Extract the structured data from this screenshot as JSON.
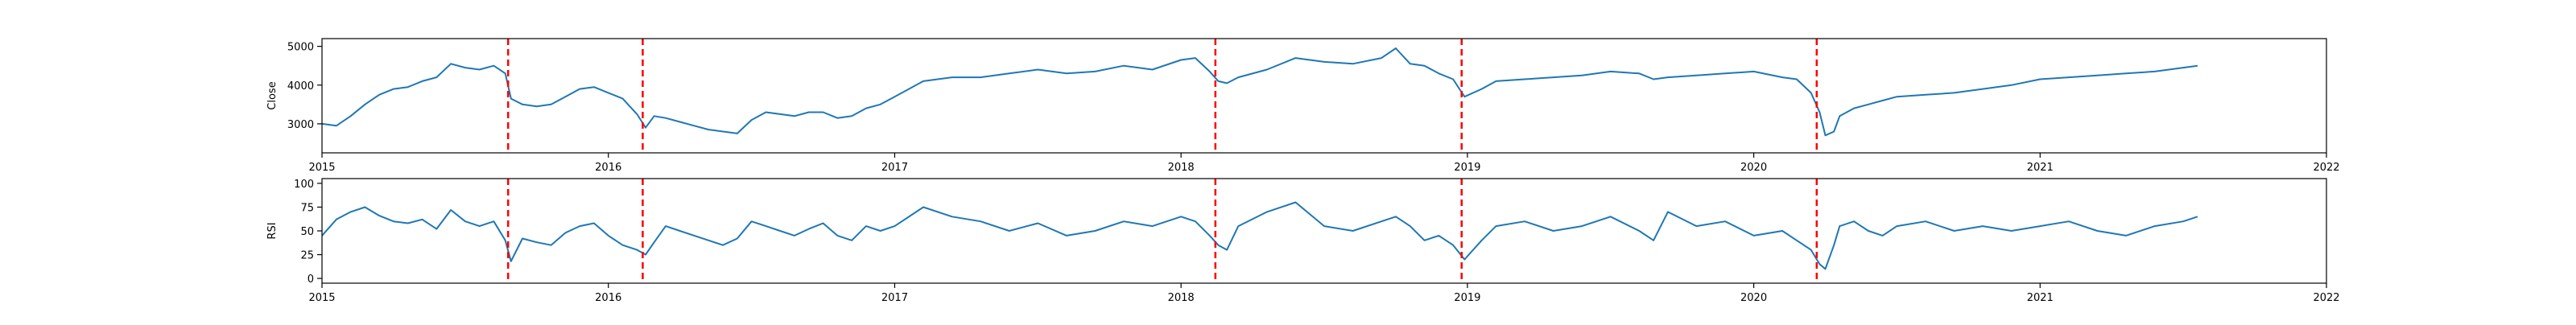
{
  "chart_data": [
    {
      "type": "line",
      "ylabel": "Close",
      "xlim": [
        2015.0,
        2022.0
      ],
      "ylim": [
        2250,
        5200
      ],
      "yticks": [
        3000,
        4000,
        5000
      ],
      "xticks": [
        "2015",
        "2016",
        "2017",
        "2018",
        "2019",
        "2020",
        "2021",
        "2022"
      ],
      "line_color": "#1f77b4",
      "series": [
        {
          "x": [
            2015.0,
            2015.05,
            2015.1,
            2015.15,
            2015.2,
            2015.25,
            2015.3,
            2015.35,
            2015.4,
            2015.45,
            2015.5,
            2015.55,
            2015.6,
            2015.64,
            2015.66,
            2015.7,
            2015.75,
            2015.8,
            2015.85,
            2015.9,
            2015.95,
            2016.0,
            2016.05,
            2016.1,
            2016.13,
            2016.16,
            2016.2,
            2016.25,
            2016.3,
            2016.35,
            2016.4,
            2016.45,
            2016.5,
            2016.55,
            2016.6,
            2016.65,
            2016.7,
            2016.75,
            2016.8,
            2016.85,
            2016.9,
            2016.95,
            2017.0,
            2017.1,
            2017.2,
            2017.3,
            2017.4,
            2017.5,
            2017.6,
            2017.7,
            2017.8,
            2017.9,
            2018.0,
            2018.05,
            2018.1,
            2018.13,
            2018.16,
            2018.2,
            2018.3,
            2018.4,
            2018.5,
            2018.6,
            2018.7,
            2018.75,
            2018.8,
            2018.85,
            2018.9,
            2018.95,
            2018.99,
            2019.05,
            2019.1,
            2019.2,
            2019.3,
            2019.4,
            2019.5,
            2019.6,
            2019.65,
            2019.7,
            2019.8,
            2019.9,
            2020.0,
            2020.1,
            2020.15,
            2020.2,
            2020.23,
            2020.25,
            2020.28,
            2020.3,
            2020.35,
            2020.4,
            2020.45,
            2020.5,
            2020.6,
            2020.7,
            2020.8,
            2020.9,
            2021.0,
            2021.1,
            2021.2,
            2021.3,
            2021.4,
            2021.5,
            2021.55
          ],
          "y": [
            3000,
            2950,
            3200,
            3500,
            3750,
            3900,
            3950,
            4100,
            4200,
            4550,
            4450,
            4400,
            4500,
            4300,
            3650,
            3500,
            3450,
            3500,
            3700,
            3900,
            3950,
            3800,
            3650,
            3250,
            2900,
            3200,
            3150,
            3050,
            2950,
            2850,
            2800,
            2750,
            3100,
            3300,
            3250,
            3200,
            3300,
            3300,
            3150,
            3200,
            3400,
            3500,
            3700,
            4100,
            4200,
            4200,
            4300,
            4400,
            4300,
            4350,
            4500,
            4400,
            4650,
            4700,
            4350,
            4100,
            4050,
            4200,
            4400,
            4700,
            4600,
            4550,
            4700,
            4950,
            4550,
            4500,
            4300,
            4150,
            3700,
            3900,
            4100,
            4150,
            4200,
            4250,
            4350,
            4300,
            4150,
            4200,
            4250,
            4300,
            4350,
            4200,
            4150,
            3800,
            3300,
            2700,
            2800,
            3200,
            3400,
            3500,
            3600,
            3700,
            3750,
            3800,
            3900,
            4000,
            4150,
            4200,
            4250,
            4300,
            4350,
            4450,
            4500
          ]
        }
      ]
    },
    {
      "type": "line",
      "ylabel": "RSI",
      "xlim": [
        2015.0,
        2022.0
      ],
      "ylim": [
        -5,
        105
      ],
      "yticks": [
        0,
        25,
        50,
        75,
        100
      ],
      "xticks": [
        "2015",
        "2016",
        "2017",
        "2018",
        "2019",
        "2020",
        "2021",
        "2022"
      ],
      "line_color": "#1f77b4",
      "series": [
        {
          "x": [
            2015.0,
            2015.05,
            2015.1,
            2015.15,
            2015.2,
            2015.25,
            2015.3,
            2015.35,
            2015.4,
            2015.45,
            2015.5,
            2015.55,
            2015.6,
            2015.64,
            2015.66,
            2015.7,
            2015.75,
            2015.8,
            2015.85,
            2015.9,
            2015.95,
            2016.0,
            2016.05,
            2016.1,
            2016.13,
            2016.16,
            2016.2,
            2016.25,
            2016.3,
            2016.35,
            2016.4,
            2016.45,
            2016.5,
            2016.55,
            2016.6,
            2016.65,
            2016.7,
            2016.75,
            2016.8,
            2016.85,
            2016.9,
            2016.95,
            2017.0,
            2017.1,
            2017.2,
            2017.3,
            2017.4,
            2017.5,
            2017.6,
            2017.7,
            2017.8,
            2017.9,
            2018.0,
            2018.05,
            2018.1,
            2018.13,
            2018.16,
            2018.2,
            2018.3,
            2018.4,
            2018.5,
            2018.6,
            2018.7,
            2018.75,
            2018.8,
            2018.85,
            2018.9,
            2018.95,
            2018.99,
            2019.05,
            2019.1,
            2019.2,
            2019.3,
            2019.4,
            2019.5,
            2019.6,
            2019.65,
            2019.7,
            2019.8,
            2019.9,
            2020.0,
            2020.1,
            2020.15,
            2020.2,
            2020.23,
            2020.25,
            2020.28,
            2020.3,
            2020.35,
            2020.4,
            2020.45,
            2020.5,
            2020.6,
            2020.7,
            2020.8,
            2020.9,
            2021.0,
            2021.1,
            2021.2,
            2021.3,
            2021.4,
            2021.5,
            2021.55
          ],
          "y": [
            45,
            62,
            70,
            75,
            66,
            60,
            58,
            62,
            52,
            72,
            60,
            55,
            60,
            40,
            18,
            42,
            38,
            35,
            48,
            55,
            58,
            45,
            35,
            30,
            25,
            38,
            55,
            50,
            45,
            40,
            35,
            42,
            60,
            55,
            50,
            45,
            52,
            58,
            45,
            40,
            55,
            50,
            55,
            75,
            65,
            60,
            50,
            58,
            45,
            50,
            60,
            55,
            65,
            60,
            45,
            35,
            30,
            55,
            70,
            80,
            55,
            50,
            60,
            65,
            55,
            40,
            45,
            35,
            20,
            40,
            55,
            60,
            50,
            55,
            65,
            50,
            40,
            70,
            55,
            60,
            45,
            50,
            40,
            30,
            15,
            10,
            35,
            55,
            60,
            50,
            45,
            55,
            60,
            50,
            55,
            50,
            55,
            60,
            50,
            45,
            55,
            60,
            65
          ]
        }
      ]
    }
  ],
  "event_markers": {
    "x": [
      2015.65,
      2016.12,
      2018.12,
      2018.98,
      2020.22
    ],
    "color": "#ff0000"
  }
}
